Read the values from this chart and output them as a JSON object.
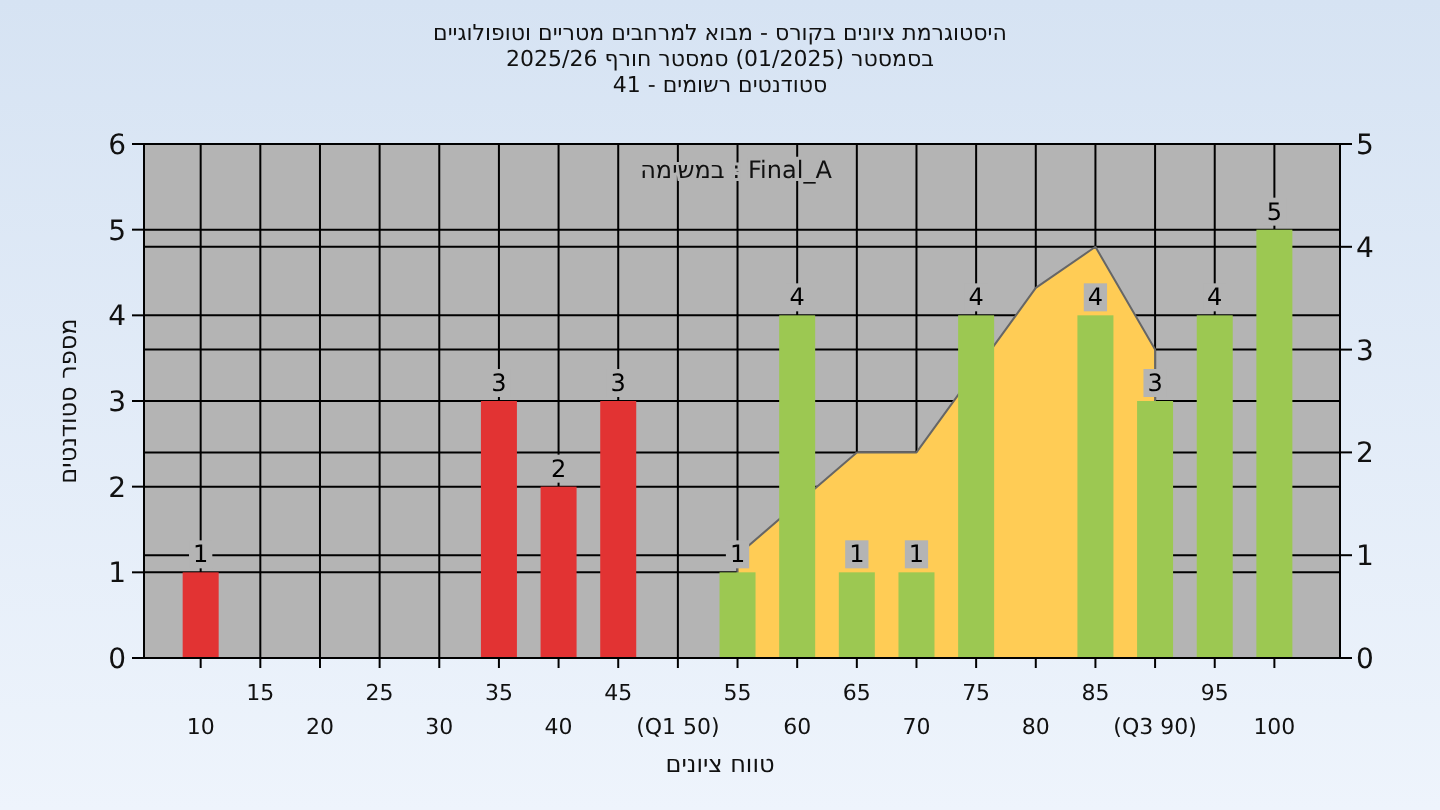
{
  "chart_data": {
    "type": "bar",
    "title": "היסטוגרמת ציונים בקורס - מבוא למרחבים מטריים וטופולוגיים",
    "subtitle": "בסמסטר  (01/2025)  סמסטר חורף 2025/26\nסטודנטים רשומים - 41",
    "xlabel": "טווח ציונים",
    "ylabel": "מספר סטודנטים",
    "annotations": [
      "במשימה : Final_A"
    ],
    "categories": [
      "10",
      "15",
      "20",
      "25",
      "30",
      "35",
      "40",
      "45",
      "(Q1 50)",
      "55",
      "60",
      "65",
      "70",
      "75",
      "80",
      "85",
      "(Q3 90)",
      "95",
      "100"
    ],
    "series": [
      {
        "type": "area",
        "axis": "y2",
        "color": "#ffcc55",
        "values": [
          null,
          null,
          null,
          null,
          null,
          null,
          null,
          null,
          null,
          1,
          null,
          2,
          2,
          null,
          3.6,
          4,
          3,
          null,
          null
        ]
      },
      {
        "colors": [
          "#e23333",
          "#e23333",
          "#e23333",
          "#e23333",
          "#e23333",
          "#e23333",
          "#e23333",
          "#e23333",
          "#9cc852",
          "#9cc852",
          "#9cc852",
          "#9cc852",
          "#9cc852",
          "#9cc852",
          "#9cc852",
          "#9cc852",
          "#9cc852",
          "#9cc852",
          "#9cc852"
        ],
        "values": [
          1,
          0,
          0,
          0,
          0,
          3,
          2,
          3,
          0,
          1,
          4,
          1,
          1,
          4,
          0,
          4,
          3,
          4,
          5
        ],
        "value_labels": [
          "1",
          null,
          null,
          null,
          null,
          "3",
          "2",
          "3",
          null,
          "1",
          "4",
          "1",
          "1",
          "4",
          null,
          "4",
          "3",
          "4",
          "5"
        ]
      }
    ],
    "ylim": [
      0,
      6
    ],
    "yticks": [
      0,
      1,
      2,
      3,
      4,
      5,
      6
    ],
    "y2lim": [
      0,
      5
    ],
    "y2ticks": [
      0,
      1,
      2,
      3,
      4,
      5
    ],
    "grid": true
  }
}
